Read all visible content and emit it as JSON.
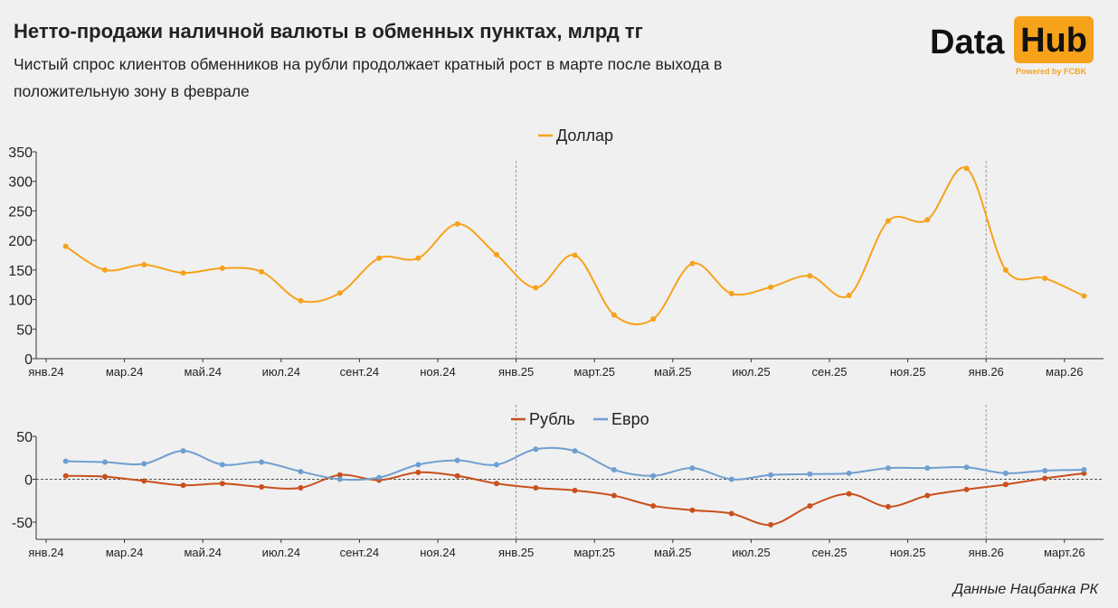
{
  "header": {
    "title": "Нетто-продажи наличной валюты в обменных пунктах, млрд тг",
    "subtitle": "Чистый спрос клиентов обменников на рубли продолжает кратный рост в марте после выхода в положительную зону в феврале"
  },
  "logo": {
    "word1": "Data",
    "word2": "Hub",
    "tagline": "Powered by FCBK"
  },
  "source": "Данные Нацбанка РК",
  "colors": {
    "dollar": "#f7a21b",
    "ruble": "#c9501c",
    "euro": "#6e9fd0"
  },
  "chart_data": [
    {
      "type": "line",
      "legend": [
        "Доллар"
      ],
      "legend_position": "top-center",
      "x_tick_labels": [
        "янв.24",
        "мар.24",
        "май.24",
        "июл.24",
        "сент.24",
        "ноя.24",
        "янв.25",
        "март.25",
        "май.25",
        "июл.25",
        "сен.25",
        "ноя.25",
        "янв.26",
        "мар.26"
      ],
      "yticks": [
        0,
        50,
        100,
        150,
        200,
        250,
        300,
        350
      ],
      "ylim": [
        0,
        350
      ],
      "series": [
        {
          "name": "Доллар",
          "values": [
            190,
            150,
            159,
            145,
            153,
            147,
            98,
            111,
            170,
            170,
            228,
            176,
            120,
            175,
            74,
            67,
            161,
            110,
            121,
            140,
            107,
            233,
            235,
            322,
            150,
            136,
            106
          ]
        }
      ]
    },
    {
      "type": "line",
      "legend": [
        "Рубль",
        "Евро"
      ],
      "legend_position": "top-center",
      "x_tick_labels": [
        "янв.24",
        "мар.24",
        "май.24",
        "июл.24",
        "сент.24",
        "ноя.24",
        "янв.25",
        "март.25",
        "май.25",
        "июл.25",
        "сен.25",
        "ноя.25",
        "янв.26",
        "март.26"
      ],
      "yticks": [
        -50,
        0,
        50
      ],
      "ylim": [
        -70,
        50
      ],
      "series": [
        {
          "name": "Рубль",
          "values": [
            4,
            3,
            -2,
            -7,
            -5,
            -9,
            -10,
            5,
            -1,
            8,
            4,
            -5,
            -10,
            -13,
            -19,
            -31,
            -36,
            -40,
            -53,
            -31,
            -17,
            -32,
            -19,
            -12,
            -6,
            1,
            7
          ]
        },
        {
          "name": "Евро",
          "values": [
            21,
            20,
            18,
            33,
            17,
            20,
            9,
            0,
            2,
            17,
            22,
            17,
            35,
            33,
            11,
            4,
            13,
            0,
            5,
            6,
            7,
            13,
            13,
            14,
            7,
            10,
            11
          ]
        }
      ]
    }
  ]
}
